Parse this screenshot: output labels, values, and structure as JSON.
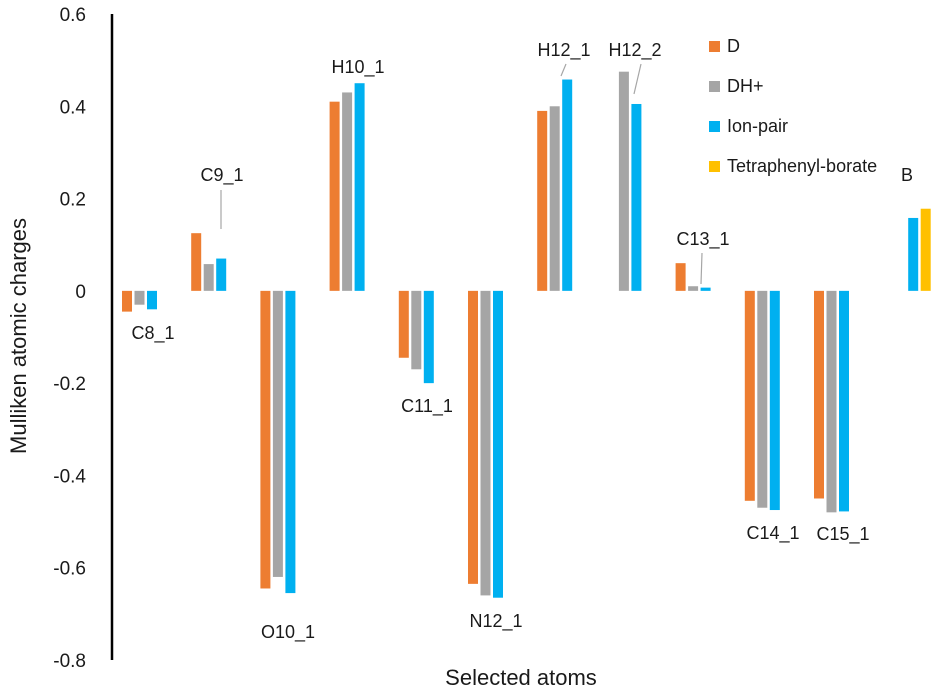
{
  "chart_data": {
    "type": "bar",
    "title": "",
    "xlabel": "Selected atoms",
    "ylabel": "Mulliken atomic charges",
    "ylim": [
      -0.8,
      0.6
    ],
    "yticks": [
      "0.6",
      "0.4",
      "0.2",
      "0",
      "-0.2",
      "-0.4",
      "-0.6",
      "-0.8"
    ],
    "grid": false,
    "legend_position": "top-right",
    "categories": [
      "C8_1",
      "C9_1",
      "O10_1",
      "H10_1",
      "C11_1",
      "N12_1",
      "H12_1",
      "H12_2",
      "C13_1",
      "C14_1",
      "C15_1",
      "B"
    ],
    "series": [
      {
        "name": "D",
        "color": "#ED7D31",
        "values": [
          -0.045,
          0.125,
          -0.645,
          0.41,
          -0.145,
          -0.635,
          0.39,
          null,
          0.06,
          -0.455,
          -0.45,
          null
        ]
      },
      {
        "name": "DH+",
        "color": "#A5A5A5",
        "values": [
          -0.03,
          0.058,
          -0.62,
          0.43,
          -0.17,
          -0.66,
          0.4,
          0.475,
          0.01,
          -0.47,
          -0.48,
          null
        ]
      },
      {
        "name": "Ion-pair",
        "color": "#00B0F0",
        "values": [
          -0.04,
          0.07,
          -0.655,
          0.45,
          -0.2,
          -0.665,
          0.458,
          0.405,
          0.007,
          -0.475,
          -0.478,
          0.158
        ]
      },
      {
        "name": "Tetraphenyl-borate",
        "color": "#FFC000",
        "values": [
          null,
          null,
          null,
          null,
          null,
          null,
          null,
          null,
          null,
          null,
          null,
          0.178
        ]
      }
    ]
  }
}
